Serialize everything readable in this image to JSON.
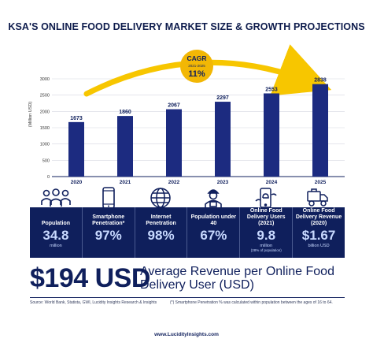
{
  "title": "KSA'S ONLINE FOOD DELIVERY MARKET SIZE & GROWTH PROJECTIONS",
  "colors": {
    "navy": "#0f1f5c",
    "bar": "#1c2b80",
    "gold": "#f2b705",
    "arrow": "#f7c600"
  },
  "chart_data": {
    "type": "bar",
    "title": "KSA'S ONLINE FOOD DELIVERY MARKET SIZE & GROWTH PROJECTIONS",
    "categories": [
      "2020",
      "2021",
      "2022",
      "2023",
      "2024",
      "2025"
    ],
    "values": [
      1673,
      1860,
      2067,
      2297,
      2553,
      2838
    ],
    "ylabel": "(Million USD)",
    "ylim": [
      0,
      3000
    ],
    "yticks": [
      0,
      500,
      1000,
      1500,
      2000,
      2500,
      3000
    ],
    "grid": true,
    "annotation": {
      "label": "CAGR",
      "period": "2021-2025",
      "value": "11%"
    }
  },
  "icons": [
    "people-group-icon",
    "smartphone-icon",
    "globe-icon",
    "person-icon",
    "phone-food-order-icon",
    "food-delivery-icon"
  ],
  "stats": [
    {
      "label": "Population",
      "value": "34.8",
      "unit": "million",
      "sub": ""
    },
    {
      "label": "Smartphone Penetration*",
      "value": "97%",
      "unit": "",
      "sub": ""
    },
    {
      "label": "Internet Penetration",
      "value": "98%",
      "unit": "",
      "sub": ""
    },
    {
      "label": "Population under 40",
      "value": "67%",
      "unit": "",
      "sub": ""
    },
    {
      "label": "Online Food Delivery Users (2021)",
      "value": "9.8",
      "unit": "million",
      "sub": "(28% of population)"
    },
    {
      "label": "Online Food Delivery Revenue (2020)",
      "value": "$1.67",
      "unit": "billion USD",
      "sub": ""
    }
  ],
  "highlight": {
    "value": "$194 USD",
    "label": "Average Revenue per Online Food Delivery User (USD)"
  },
  "footnotes": {
    "source": "Source: World Bank, Statista, GWI, Lucidity Insights Research & Insights",
    "note": "(*) Smartphone Penetration % was calculated within population between the ages of 16 to 64."
  },
  "website": "www.LucidityInsights.com"
}
